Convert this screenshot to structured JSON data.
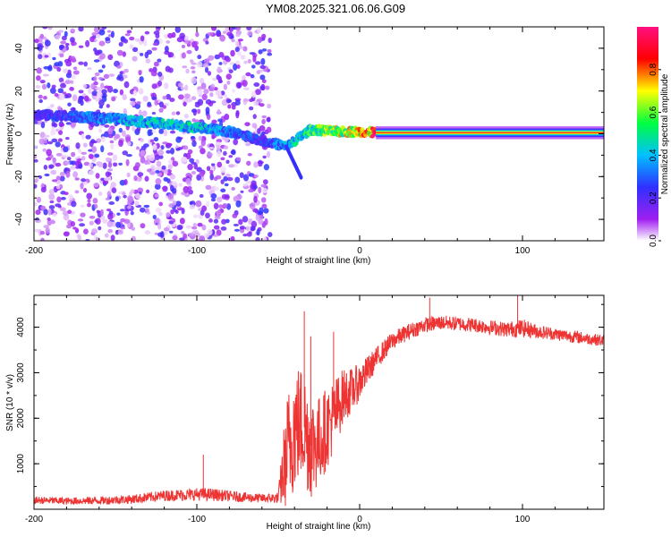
{
  "title": "YM08.2025.321.06.06.G09",
  "colors": {
    "snr_line": "#ee3333",
    "frame": "#000000"
  },
  "chart_data": [
    {
      "type": "heatmap",
      "xlabel": "Height of straight line (km)",
      "ylabel": "Frequency (Hz)",
      "xlim": [
        -200,
        150
      ],
      "ylim": [
        -50,
        50
      ],
      "x_ticks": [
        "-200",
        "-100",
        "0",
        "100"
      ],
      "y_ticks": [
        "-40",
        "-20",
        "0",
        "20",
        "40"
      ],
      "colorbar": {
        "label": "Normalized spectral amplitude",
        "range": [
          0,
          1
        ],
        "ticks": [
          "0.0",
          "0.2",
          "0.4",
          "0.6",
          "0.8"
        ],
        "colormap": [
          "#ffffff",
          "#a020f0",
          "#3030ff",
          "#00c0ff",
          "#00ff40",
          "#ffff00",
          "#ff0000",
          "#ff1080"
        ]
      },
      "ridge": [
        {
          "x": -200,
          "y": 9,
          "amp": 0.25
        },
        {
          "x": -175,
          "y": 8,
          "amp": 0.35
        },
        {
          "x": -150,
          "y": 7,
          "amp": 0.45
        },
        {
          "x": -125,
          "y": 5,
          "amp": 0.5
        },
        {
          "x": -100,
          "y": 3,
          "amp": 0.5
        },
        {
          "x": -80,
          "y": 1,
          "amp": 0.4
        },
        {
          "x": -60,
          "y": -3,
          "amp": 0.3
        },
        {
          "x": -45,
          "y": -6,
          "amp": 0.45
        },
        {
          "x": -30,
          "y": 2,
          "amp": 0.6
        },
        {
          "x": -15,
          "y": 1,
          "amp": 0.75
        },
        {
          "x": 0,
          "y": 1,
          "amp": 0.8
        },
        {
          "x": 10,
          "y": 0.5,
          "amp": 1.0
        },
        {
          "x": 150,
          "y": 0.5,
          "amp": 1.0
        }
      ],
      "noise_region_x": [
        -200,
        -55
      ]
    },
    {
      "type": "line",
      "xlabel": "Height of straight line (km)",
      "ylabel": "SNR (10 * v/v)",
      "xlim": [
        -200,
        150
      ],
      "ylim": [
        0,
        4700
      ],
      "x_ticks": [
        "-200",
        "-100",
        "0",
        "100"
      ],
      "y_ticks": [
        "1000",
        "2000",
        "3000",
        "4000"
      ],
      "series": [
        {
          "x": [
            -200,
            -180,
            -160,
            -140,
            -120,
            -100,
            -90,
            -80,
            -70,
            -60,
            -50,
            -45,
            -40,
            -35,
            -30,
            -25,
            -20,
            -15,
            -10,
            -5,
            0,
            10,
            20,
            30,
            40,
            50,
            60,
            70,
            80,
            90,
            100,
            110,
            120,
            130,
            140,
            150
          ],
          "y": [
            200,
            180,
            190,
            220,
            300,
            330,
            320,
            290,
            260,
            240,
            250,
            1200,
            1800,
            1900,
            1400,
            1500,
            1800,
            2100,
            2500,
            2600,
            2800,
            3300,
            3700,
            3900,
            4050,
            4100,
            4080,
            4050,
            4000,
            3950,
            3980,
            3900,
            3850,
            3800,
            3750,
            3700
          ],
          "noise": [
            80,
            80,
            90,
            100,
            120,
            140,
            140,
            120,
            110,
            100,
            120,
            1300,
            1400,
            1300,
            1200,
            1000,
            900,
            800,
            600,
            500,
            400,
            250,
            200,
            180,
            170,
            160,
            160,
            160,
            160,
            170,
            200,
            150,
            140,
            140,
            130,
            130
          ]
        }
      ],
      "spikes": [
        {
          "x": -96,
          "y": 1200
        },
        {
          "x": -34,
          "y": 4350
        },
        {
          "x": -30,
          "y": 3800
        },
        {
          "x": -16,
          "y": 3900
        },
        {
          "x": 43,
          "y": 4650
        },
        {
          "x": 97,
          "y": 4750
        }
      ]
    }
  ]
}
